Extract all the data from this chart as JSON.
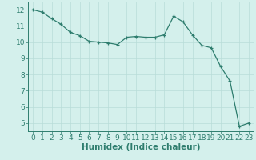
{
  "x": [
    0,
    1,
    2,
    3,
    4,
    5,
    6,
    7,
    8,
    9,
    10,
    11,
    12,
    13,
    14,
    15,
    16,
    17,
    18,
    19,
    20,
    21,
    22,
    23
  ],
  "y": [
    12.0,
    11.85,
    11.45,
    11.1,
    10.6,
    10.4,
    10.05,
    10.0,
    9.95,
    9.85,
    10.3,
    10.35,
    10.3,
    10.3,
    10.45,
    11.6,
    11.25,
    10.45,
    9.8,
    9.65,
    8.5,
    7.6,
    4.8,
    5.0
  ],
  "line_color": "#2e7d6e",
  "marker": "+",
  "bg_color": "#d4f0ec",
  "grid_color": "#b8ddd8",
  "xlabel": "Humidex (Indice chaleur)",
  "ylim": [
    4.5,
    12.5
  ],
  "xlim": [
    -0.5,
    23.5
  ],
  "yticks": [
    5,
    6,
    7,
    8,
    9,
    10,
    11,
    12
  ],
  "xticks": [
    0,
    1,
    2,
    3,
    4,
    5,
    6,
    7,
    8,
    9,
    10,
    11,
    12,
    13,
    14,
    15,
    16,
    17,
    18,
    19,
    20,
    21,
    22,
    23
  ],
  "axis_color": "#2e7d6e",
  "tick_color": "#2e7d6e",
  "label_color": "#2e7d6e",
  "font_size": 6.5,
  "xlabel_fontsize": 7.5
}
